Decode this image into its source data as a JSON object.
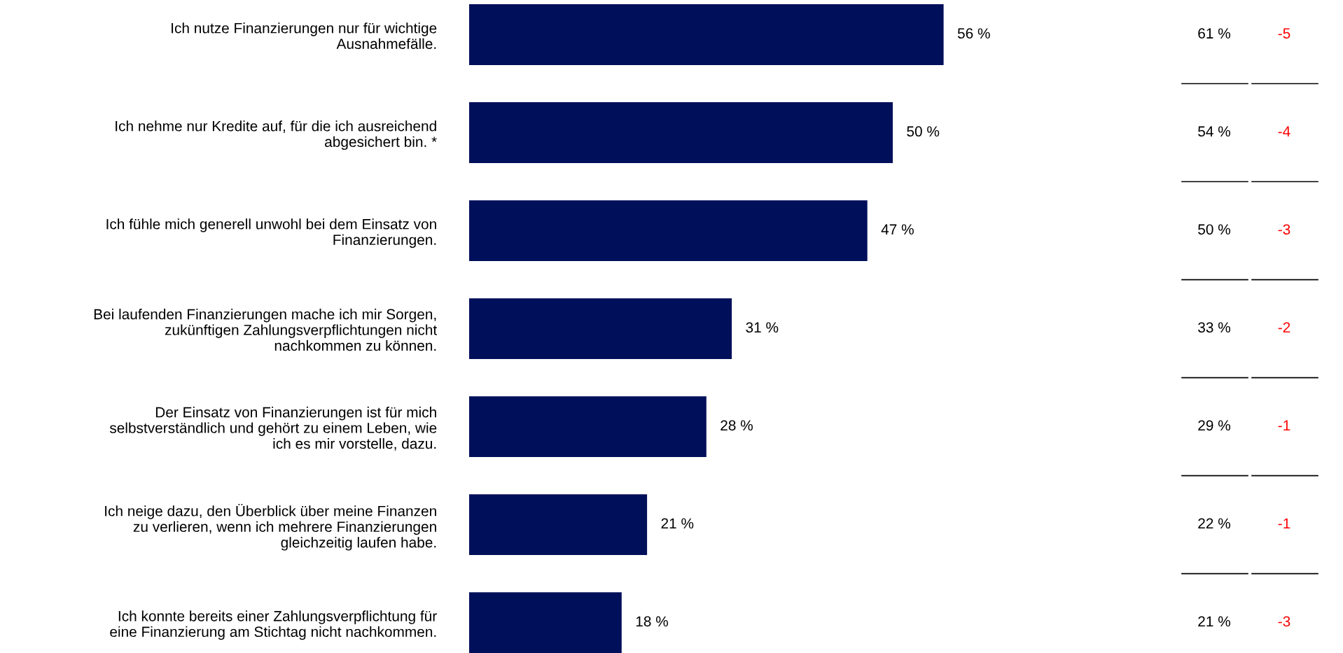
{
  "chart_data": {
    "type": "bar",
    "orientation": "horizontal",
    "categories": [
      "Ich nutze Finanzierungen nur für wichtige\nAusnahmefälle.",
      "Ich nehme nur Kredite auf, für die ich ausreichend\nabgesichert bin. *",
      "Ich fühle mich generell unwohl bei dem Einsatz von\nFinanzierungen.",
      "Bei laufenden Finanzierungen mache ich mir Sorgen,\nzukünftigen Zahlungsverpflichtungen nicht\nnachkommen zu können.",
      "Der Einsatz von Finanzierungen ist für mich\nselbstverständlich und gehört zu einem Leben, wie\nich es mir vorstelle, dazu.",
      "Ich neige dazu, den Überblick über meine Finanzen\nzu verlieren, wenn ich mehrere Finanzierungen\ngleichzeitig laufen habe.",
      "Ich konnte bereits einer Zahlungsverpflichtung für\neine Finanzierung am Stichtag nicht nachkommen."
    ],
    "series": [
      {
        "color": "#000f5a",
        "values": [
          56,
          50,
          47,
          31,
          28,
          21,
          18
        ],
        "value_labels": [
          "56 %",
          "50 %",
          "47 %",
          "31 %",
          "28 %",
          "21 %",
          "18 %"
        ]
      }
    ],
    "annotations": [
      "61 %",
      "-5",
      "54 %",
      "-4",
      "50 %",
      "-3",
      "33 %",
      "-2",
      "29 %",
      "-1",
      "22 %",
      "-1",
      "21 %",
      "-3"
    ]
  }
}
